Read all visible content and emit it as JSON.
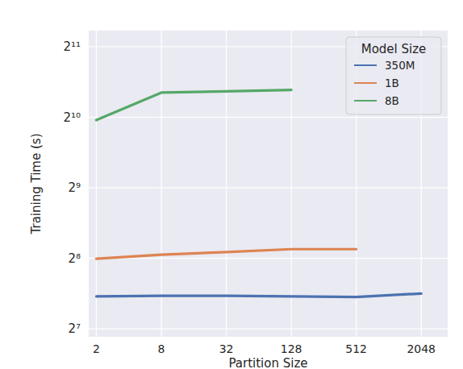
{
  "chart_data": {
    "type": "line",
    "x_label": "Partition Size",
    "y_label": "Training Time (s)",
    "x": [
      2,
      8,
      32,
      128,
      512,
      2048
    ],
    "series": [
      {
        "name": "350M",
        "color": "#4c72b0",
        "values": [
          176,
          177,
          177,
          176,
          175,
          181
        ]
      },
      {
        "name": "1B",
        "color": "#dd8452",
        "values": [
          255,
          265,
          272,
          280,
          280,
          null
        ]
      },
      {
        "name": "8B",
        "color": "#55a868",
        "values": [
          996,
          1305,
          1320,
          1340,
          null,
          null
        ]
      }
    ],
    "log": true,
    "xlim": [
      1.7,
      3600
    ],
    "xticks": [
      2,
      8,
      32,
      128,
      512,
      2048
    ],
    "ylim": [
      118.3,
      2400
    ],
    "yticks": [
      {
        "value": 128,
        "label": "2⁷"
      },
      {
        "value": 256,
        "label": "2⁸"
      },
      {
        "value": 512,
        "label": "2⁹"
      },
      {
        "value": 1024,
        "label": "2¹⁰"
      },
      {
        "value": 2048,
        "label": "2¹¹"
      }
    ],
    "legend": "upper right",
    "legend_title": "Model Size",
    "grid": true
  }
}
